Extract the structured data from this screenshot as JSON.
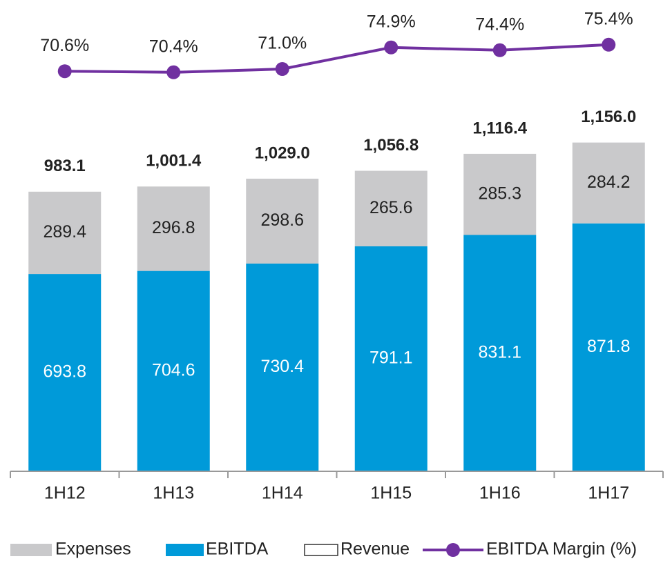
{
  "chart_data": {
    "type": "bar",
    "categories": [
      "1H12",
      "1H13",
      "1H14",
      "1H15",
      "1H16",
      "1H17"
    ],
    "ylim": [
      0,
      1650
    ],
    "y2lim": [
      62,
      80
    ],
    "series": [
      {
        "name": "Expenses",
        "color": "#c9c9cb",
        "values": [
          289.4,
          296.8,
          298.6,
          265.6,
          285.3,
          284.2
        ]
      },
      {
        "name": "EBITDA",
        "color": "#009ad9",
        "values": [
          693.8,
          704.6,
          730.4,
          791.1,
          831.1,
          871.8
        ]
      },
      {
        "name": "Revenue",
        "color": "#555555",
        "values": [
          983.1,
          1001.4,
          1029.0,
          1056.8,
          1116.4,
          1156.0
        ],
        "value_labels": [
          "983.1",
          "1,001.4",
          "1,029.0",
          "1,056.8",
          "1,116.4",
          "1,156.0"
        ]
      },
      {
        "name": "EBITDA Margin (%)",
        "color": "#7030a0",
        "axis": "y2",
        "values": [
          70.6,
          70.4,
          71.0,
          74.9,
          74.4,
          75.4
        ],
        "value_labels": [
          "70.6%",
          "70.4%",
          "71.0%",
          "74.9%",
          "74.4%",
          "75.4%"
        ]
      }
    ]
  }
}
